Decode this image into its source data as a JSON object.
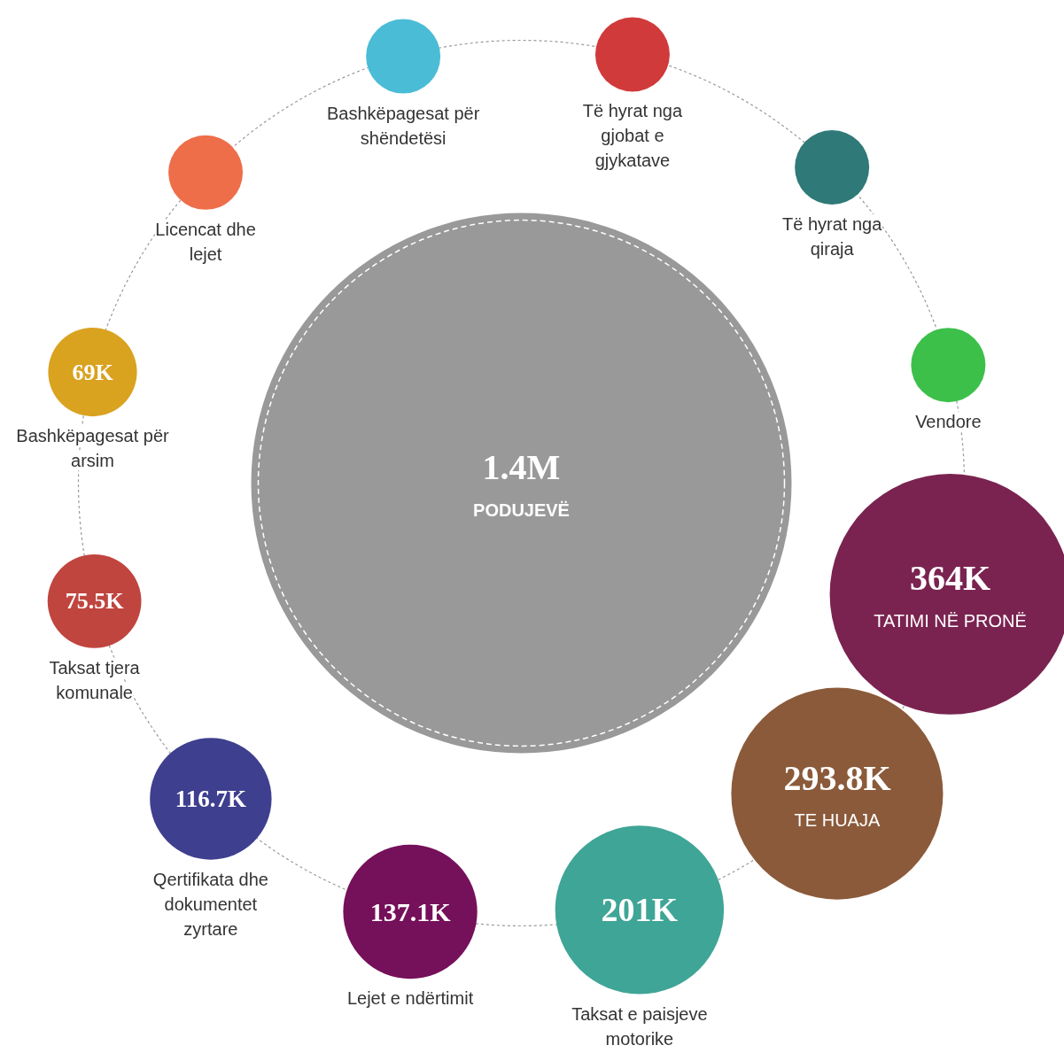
{
  "chart_data": {
    "type": "other",
    "categories": [
      "PODUJEVË",
      "Bashkëpagesat për shëndetësi",
      "Të hyrat nga gjobat e gjykatave",
      "Të hyrat nga qiraja",
      "Vendore",
      "TATIMI NË PRONË",
      "TE HUAJA",
      "Taksat e paisjeve motorike",
      "Lejet e ndërtimit",
      "Qertifikata dhe dokumentet zyrtare",
      "Taksat tjera komunale",
      "Bashkëpagesat për arsim",
      "Licencat dhe lejet"
    ],
    "values": [
      1400000,
      null,
      null,
      null,
      null,
      364000,
      293800,
      201000,
      137100,
      116700,
      75500,
      69000,
      null
    ],
    "value_labels": [
      "1.4M",
      null,
      null,
      null,
      null,
      "364K",
      "293.8K",
      "201K",
      "137.1K",
      "116.7K",
      "75.5K",
      "69K",
      null
    ],
    "colors": [
      "#999999",
      "#4bbcd6",
      "#d13a3a",
      "#2f7a78",
      "#3cc04a",
      "#7a2350",
      "#8b5a3a",
      "#3fa596",
      "#75105a",
      "#3f3f8f",
      "#c0453f",
      "#d9a21f",
      "#ee6e4a"
    ]
  }
}
